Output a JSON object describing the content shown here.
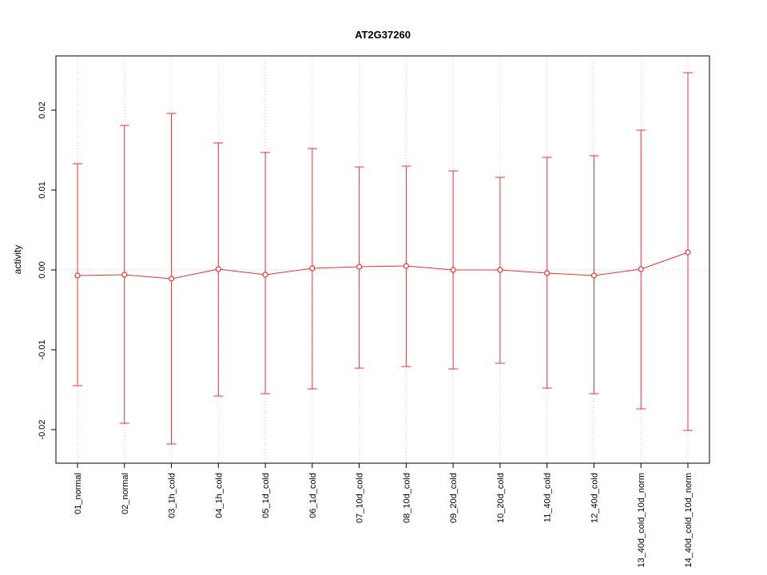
{
  "chart_data": {
    "type": "line",
    "title": "AT2G37260",
    "xlabel": "",
    "ylabel": "activity",
    "ylim": [
      -0.0242,
      0.0268
    ],
    "grid": true,
    "legend": "none",
    "point_style": "open-circle",
    "series_color": "#f03030",
    "grid_color": "#cccccc",
    "zero_line": 0,
    "yticks": [
      -0.02,
      -0.01,
      0.0,
      0.01,
      0.02
    ],
    "ytick_labels": [
      "-0.02",
      "-0.01",
      "0.00",
      "0.01",
      "0.02"
    ],
    "categories": [
      "01_normal",
      "02_normal",
      "03_1h_cold",
      "04_1h_cold",
      "05_1d_cold",
      "06_1d_cold",
      "07_10d_cold",
      "08_10d_cold",
      "09_20d_cold",
      "10_20d_cold",
      "11_40d_cold",
      "12_40d_cold",
      "13_40d_cold_10d_norm",
      "14_40d_cold_10d_norm"
    ],
    "series": [
      {
        "name": "mean",
        "values": [
          -0.0007,
          -0.0006,
          -0.0011,
          0.0001,
          -0.0006,
          0.0002,
          0.0004,
          0.0005,
          0.0,
          0.0,
          -0.0004,
          -0.0007,
          0.0001,
          0.0022
        ]
      },
      {
        "name": "upper_error",
        "values": [
          0.0133,
          0.0181,
          0.0196,
          0.0159,
          0.0147,
          0.0152,
          0.0129,
          0.013,
          0.0124,
          0.0116,
          0.0141,
          0.0143,
          0.0175,
          0.0247
        ]
      },
      {
        "name": "lower_error",
        "values": [
          -0.0145,
          -0.0192,
          -0.0218,
          -0.0158,
          -0.0155,
          -0.0149,
          -0.0123,
          -0.0121,
          -0.0124,
          -0.0117,
          -0.0148,
          -0.0155,
          -0.0174,
          -0.0201
        ]
      }
    ]
  }
}
